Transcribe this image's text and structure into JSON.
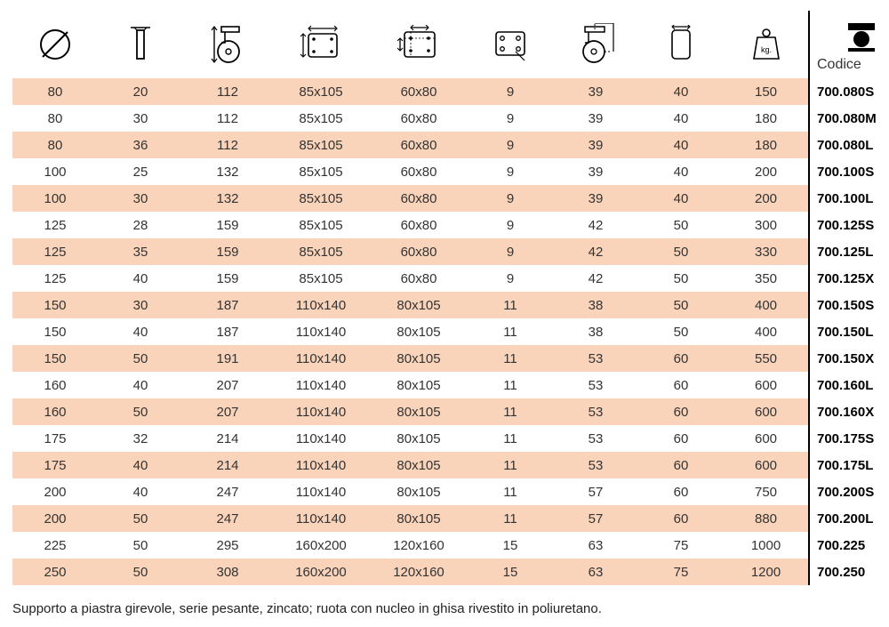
{
  "table": {
    "header_code_label": "Codice",
    "row_stripe_color": "#f9d4ba",
    "code_border_color": "#000000",
    "columns": [
      {
        "name": "diameter",
        "icon": "diameter-icon"
      },
      {
        "name": "hub_width",
        "icon": "hub-width-icon"
      },
      {
        "name": "total_height",
        "icon": "height-icon"
      },
      {
        "name": "plate_outer",
        "icon": "plate-outer-icon"
      },
      {
        "name": "plate_holes",
        "icon": "plate-holes-icon"
      },
      {
        "name": "hole_diameter",
        "icon": "hole-dia-icon"
      },
      {
        "name": "swivel_radius",
        "icon": "swivel-radius-icon"
      },
      {
        "name": "plate_width",
        "icon": "plate-width-icon"
      },
      {
        "name": "load_capacity",
        "icon": "weight-icon"
      },
      {
        "name": "code",
        "icon": "product-icon"
      }
    ],
    "rows": [
      [
        "80",
        "20",
        "112",
        "85x105",
        "60x80",
        "9",
        "39",
        "40",
        "150",
        "700.080S"
      ],
      [
        "80",
        "30",
        "112",
        "85x105",
        "60x80",
        "9",
        "39",
        "40",
        "180",
        "700.080M"
      ],
      [
        "80",
        "36",
        "112",
        "85x105",
        "60x80",
        "9",
        "39",
        "40",
        "180",
        "700.080L"
      ],
      [
        "100",
        "25",
        "132",
        "85x105",
        "60x80",
        "9",
        "39",
        "40",
        "200",
        "700.100S"
      ],
      [
        "100",
        "30",
        "132",
        "85x105",
        "60x80",
        "9",
        "39",
        "40",
        "200",
        "700.100L"
      ],
      [
        "125",
        "28",
        "159",
        "85x105",
        "60x80",
        "9",
        "42",
        "50",
        "300",
        "700.125S"
      ],
      [
        "125",
        "35",
        "159",
        "85x105",
        "60x80",
        "9",
        "42",
        "50",
        "330",
        "700.125L"
      ],
      [
        "125",
        "40",
        "159",
        "85x105",
        "60x80",
        "9",
        "42",
        "50",
        "350",
        "700.125X"
      ],
      [
        "150",
        "30",
        "187",
        "110x140",
        "80x105",
        "11",
        "38",
        "50",
        "400",
        "700.150S"
      ],
      [
        "150",
        "40",
        "187",
        "110x140",
        "80x105",
        "11",
        "38",
        "50",
        "400",
        "700.150L"
      ],
      [
        "150",
        "50",
        "191",
        "110x140",
        "80x105",
        "11",
        "53",
        "60",
        "550",
        "700.150X"
      ],
      [
        "160",
        "40",
        "207",
        "110x140",
        "80x105",
        "11",
        "53",
        "60",
        "600",
        "700.160L"
      ],
      [
        "160",
        "50",
        "207",
        "110x140",
        "80x105",
        "11",
        "53",
        "60",
        "600",
        "700.160X"
      ],
      [
        "175",
        "32",
        "214",
        "110x140",
        "80x105",
        "11",
        "53",
        "60",
        "600",
        "700.175S"
      ],
      [
        "175",
        "40",
        "214",
        "110x140",
        "80x105",
        "11",
        "53",
        "60",
        "600",
        "700.175L"
      ],
      [
        "200",
        "40",
        "247",
        "110x140",
        "80x105",
        "11",
        "57",
        "60",
        "750",
        "700.200S"
      ],
      [
        "200",
        "50",
        "247",
        "110x140",
        "80x105",
        "11",
        "57",
        "60",
        "880",
        "700.200L"
      ],
      [
        "225",
        "50",
        "295",
        "160x200",
        "120x160",
        "15",
        "63",
        "75",
        "1000",
        "700.225"
      ],
      [
        "250",
        "50",
        "308",
        "160x200",
        "120x160",
        "15",
        "63",
        "75",
        "1200",
        "700.250"
      ]
    ]
  },
  "caption": "Supporto a piastra girevole, serie pesante, zincato; ruota con nucleo in ghisa rivestito in poliuretano."
}
